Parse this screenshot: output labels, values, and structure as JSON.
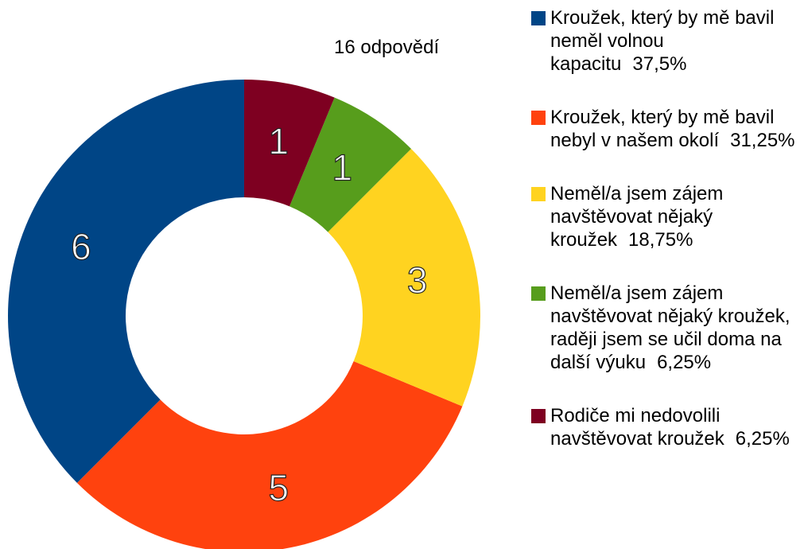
{
  "chart_data": {
    "type": "donut",
    "subtitle": "16 odpovědí",
    "categories": [
      "Kroužek, který by mě bavil neměl volnou kapacitu",
      "Kroužek, který by mě bavil nebyl v našem okolí",
      "Neměl/a jsem zájem navštěvovat nějaký kroužek",
      "Neměl/a jsem zájem navštěvovat nějaký kroužek, raději jsem se učil doma na další výuku",
      "Rodiče mi nedovolili navštěvovat kroužek"
    ],
    "values": [
      6,
      5,
      3,
      1,
      1
    ],
    "percent_labels": [
      "37,5%",
      "31,25%",
      "18,75%",
      "6,25%",
      "6,25%"
    ],
    "colors": [
      "#004586",
      "#ff420e",
      "#ffd320",
      "#579d1c",
      "#7e0021"
    ]
  }
}
